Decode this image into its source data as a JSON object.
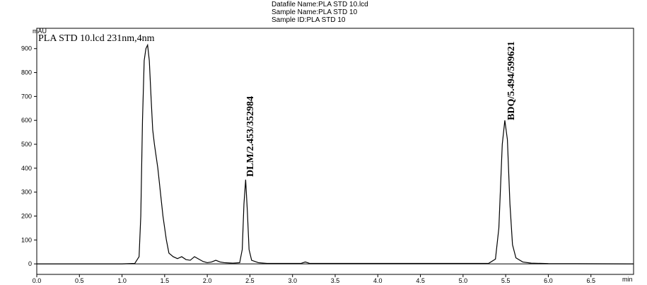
{
  "chart_data": {
    "type": "line",
    "header": [
      "Datafile Name:PLA STD 10.lcd",
      "Sample Name:PLA STD 10",
      "Sample ID:PLA STD 10"
    ],
    "trace_label": "PLA STD 10.lcd 231nm,4nm",
    "y_label": "mAU",
    "x_label": "min",
    "annotations": [
      "DLM/2.453/352984",
      "BDQ/5.494/599621"
    ],
    "x": [
      0.0,
      1.0,
      1.15,
      1.2,
      1.22,
      1.24,
      1.26,
      1.28,
      1.3,
      1.32,
      1.34,
      1.36,
      1.38,
      1.4,
      1.42,
      1.45,
      1.48,
      1.52,
      1.55,
      1.6,
      1.65,
      1.7,
      1.75,
      1.8,
      1.85,
      1.9,
      1.95,
      2.0,
      2.05,
      2.1,
      2.15,
      2.2,
      2.3,
      2.38,
      2.41,
      2.43,
      2.45,
      2.47,
      2.49,
      2.52,
      2.6,
      2.7,
      3.1,
      3.15,
      3.2,
      5.3,
      5.38,
      5.42,
      5.46,
      5.49,
      5.52,
      5.55,
      5.58,
      5.62,
      5.7,
      5.8,
      6.0,
      7.0
    ],
    "series": [
      {
        "color": "#000000",
        "values": [
          0,
          0,
          2,
          30,
          200,
          600,
          850,
          900,
          915,
          850,
          700,
          560,
          500,
          450,
          400,
          300,
          200,
          100,
          45,
          30,
          22,
          30,
          18,
          15,
          30,
          20,
          10,
          5,
          8,
          15,
          8,
          5,
          3,
          5,
          60,
          250,
          352,
          220,
          60,
          15,
          5,
          2,
          2,
          8,
          2,
          2,
          20,
          150,
          500,
          600,
          520,
          250,
          80,
          25,
          8,
          3,
          1,
          0
        ]
      }
    ],
    "xlim": [
      0,
      7
    ],
    "ylim": [
      -44,
      985
    ],
    "xticks": [
      {
        "value": 0,
        "label": "0.0"
      },
      0.5,
      {
        "value": 1,
        "label": "1.0"
      },
      1.5,
      {
        "value": 2,
        "label": "2.0"
      },
      2.5,
      {
        "value": 3,
        "label": "3.0"
      },
      3.5,
      {
        "value": 4,
        "label": "4.0"
      },
      4.5,
      {
        "value": 5,
        "label": "5.0"
      },
      5.5,
      {
        "value": 6,
        "label": "6.0"
      },
      6.5
    ],
    "yticks": [
      0,
      100,
      200,
      300,
      400,
      500,
      600,
      700,
      800,
      900
    ]
  }
}
